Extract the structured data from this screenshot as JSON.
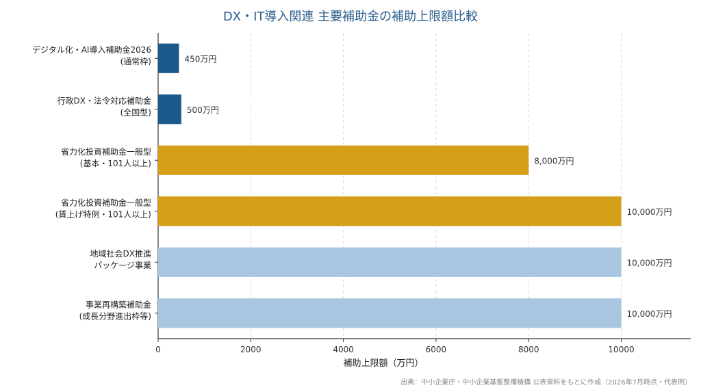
{
  "chart_data": {
    "type": "bar",
    "orientation": "horizontal",
    "title": "DX・IT導入関連 主要補助金の補助上限額比較",
    "xlabel": "補助上限額（万円）",
    "ylabel": "",
    "xlim": [
      0,
      11500
    ],
    "xticks": [
      "0",
      "2000",
      "4000",
      "6000",
      "8000",
      "10000"
    ],
    "grid": "x-dashed",
    "categories": [
      [
        "デジタル化・AI導入補助金2026",
        "(通常枠)"
      ],
      [
        "行政DX・法令対応補助金",
        "(全国型)"
      ],
      [
        "省力化投資補助金一般型",
        "(基本・101人以上)"
      ],
      [
        "省力化投資補助金一般型",
        "(賃上げ特例・101人以上)"
      ],
      [
        "地域社会DX推進",
        "パッケージ事業"
      ],
      [
        "事業再構築補助金",
        "(成長分野進出枠等)"
      ]
    ],
    "values": [
      450,
      500,
      8000,
      10000,
      10000,
      10000
    ],
    "value_labels": [
      "450万円",
      "500万円",
      "8,000万円",
      "10,000万円",
      "10,000万円",
      "10,000万円"
    ],
    "colors": [
      "#1d5a8c",
      "#1d5a8c",
      "#d4a01a",
      "#d4a01a",
      "#a8c6e0",
      "#a8c6e0"
    ]
  },
  "source": "出典：中小企業庁・中小企業基盤整備機構 公表資料をもとに作成（2026年7月時点・代表例）"
}
